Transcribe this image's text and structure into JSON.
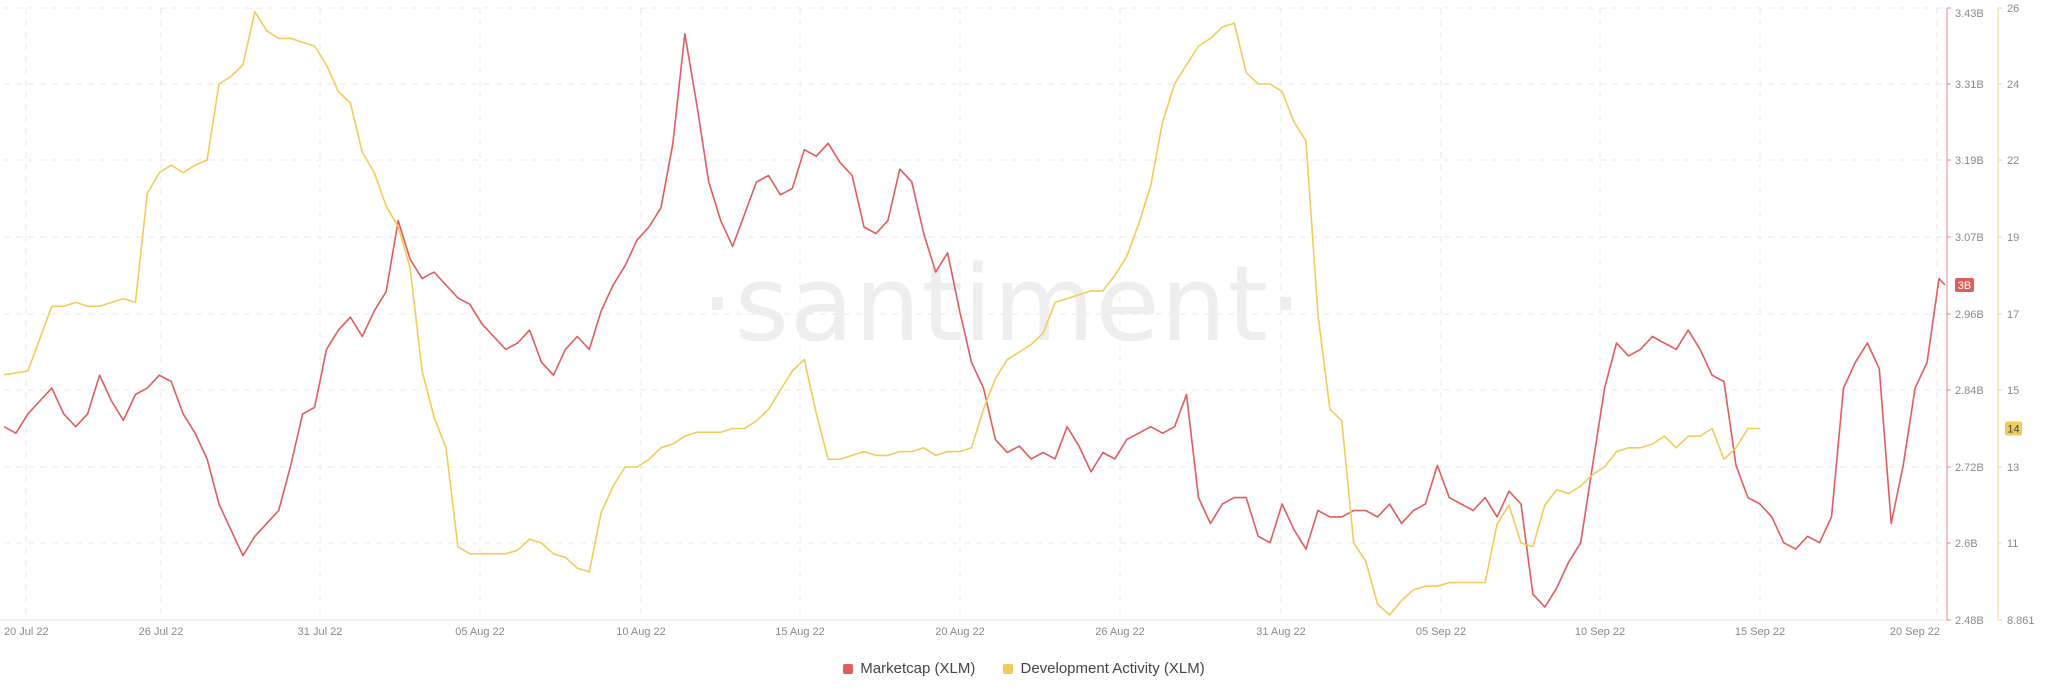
{
  "chart_data": {
    "type": "line",
    "watermark": "·santiment·",
    "x_ticks": [
      "20 Jul 22",
      "26 Jul 22",
      "31 Jul 22",
      "05 Aug 22",
      "10 Aug 22",
      "15 Aug 22",
      "20 Aug 22",
      "26 Aug 22",
      "31 Aug 22",
      "05 Sep 22",
      "10 Sep 22",
      "15 Sep 22",
      "20 Sep 22"
    ],
    "y_left": {
      "ticks": [
        "2.48B",
        "2.6B",
        "2.72B",
        "2.84B",
        "2.96B",
        "3.07B",
        "3.19B",
        "3.31B",
        "3.43B"
      ],
      "ylim": [
        2.48,
        3.43
      ],
      "color": "#e86b6b"
    },
    "y_right": {
      "ticks": [
        "8.861",
        "11",
        "13",
        "15",
        "17",
        "19",
        "22",
        "24",
        "26"
      ],
      "color": "#f2cc5b"
    },
    "series": [
      {
        "name": "Marketcap (XLM)",
        "color": "#e05d5d",
        "axis": "left",
        "current_badge": "3B",
        "points": [
          [
            0,
            2.78
          ],
          [
            2,
            2.77
          ],
          [
            4,
            2.8
          ],
          [
            6,
            2.82
          ],
          [
            8,
            2.84
          ],
          [
            10,
            2.8
          ],
          [
            12,
            2.78
          ],
          [
            14,
            2.8
          ],
          [
            16,
            2.86
          ],
          [
            18,
            2.82
          ],
          [
            20,
            2.79
          ],
          [
            22,
            2.83
          ],
          [
            24,
            2.84
          ],
          [
            26,
            2.86
          ],
          [
            28,
            2.85
          ],
          [
            30,
            2.8
          ],
          [
            32,
            2.77
          ],
          [
            34,
            2.73
          ],
          [
            36,
            2.66
          ],
          [
            38,
            2.62
          ],
          [
            40,
            2.58
          ],
          [
            42,
            2.61
          ],
          [
            44,
            2.63
          ],
          [
            46,
            2.65
          ],
          [
            48,
            2.72
          ],
          [
            50,
            2.8
          ],
          [
            52,
            2.81
          ],
          [
            54,
            2.9
          ],
          [
            56,
            2.93
          ],
          [
            58,
            2.95
          ],
          [
            60,
            2.92
          ],
          [
            62,
            2.96
          ],
          [
            64,
            2.99
          ],
          [
            66,
            3.1
          ],
          [
            68,
            3.04
          ],
          [
            70,
            3.01
          ],
          [
            72,
            3.02
          ],
          [
            74,
            3.0
          ],
          [
            76,
            2.98
          ],
          [
            78,
            2.97
          ],
          [
            80,
            2.94
          ],
          [
            82,
            2.92
          ],
          [
            84,
            2.9
          ],
          [
            86,
            2.91
          ],
          [
            88,
            2.93
          ],
          [
            90,
            2.88
          ],
          [
            92,
            2.86
          ],
          [
            94,
            2.9
          ],
          [
            96,
            2.92
          ],
          [
            98,
            2.9
          ],
          [
            100,
            2.96
          ],
          [
            102,
            3.0
          ],
          [
            104,
            3.03
          ],
          [
            106,
            3.07
          ],
          [
            108,
            3.09
          ],
          [
            110,
            3.12
          ],
          [
            112,
            3.22
          ],
          [
            114,
            3.39
          ],
          [
            116,
            3.28
          ],
          [
            118,
            3.16
          ],
          [
            120,
            3.1
          ],
          [
            122,
            3.06
          ],
          [
            124,
            3.11
          ],
          [
            126,
            3.16
          ],
          [
            128,
            3.17
          ],
          [
            130,
            3.14
          ],
          [
            132,
            3.15
          ],
          [
            134,
            3.21
          ],
          [
            136,
            3.2
          ],
          [
            138,
            3.22
          ],
          [
            140,
            3.19
          ],
          [
            142,
            3.17
          ],
          [
            144,
            3.09
          ],
          [
            146,
            3.08
          ],
          [
            148,
            3.1
          ],
          [
            150,
            3.18
          ],
          [
            152,
            3.16
          ],
          [
            154,
            3.08
          ],
          [
            156,
            3.02
          ],
          [
            158,
            3.05
          ],
          [
            160,
            2.96
          ],
          [
            162,
            2.88
          ],
          [
            164,
            2.84
          ],
          [
            166,
            2.76
          ],
          [
            168,
            2.74
          ],
          [
            170,
            2.75
          ],
          [
            172,
            2.73
          ],
          [
            174,
            2.74
          ],
          [
            176,
            2.73
          ],
          [
            178,
            2.78
          ],
          [
            180,
            2.75
          ],
          [
            182,
            2.71
          ],
          [
            184,
            2.74
          ],
          [
            186,
            2.73
          ],
          [
            188,
            2.76
          ],
          [
            190,
            2.77
          ],
          [
            192,
            2.78
          ],
          [
            194,
            2.77
          ],
          [
            196,
            2.78
          ],
          [
            198,
            2.83
          ],
          [
            200,
            2.67
          ],
          [
            202,
            2.63
          ],
          [
            204,
            2.66
          ],
          [
            206,
            2.67
          ],
          [
            208,
            2.67
          ],
          [
            210,
            2.61
          ],
          [
            212,
            2.6
          ],
          [
            214,
            2.66
          ],
          [
            216,
            2.62
          ],
          [
            218,
            2.59
          ],
          [
            220,
            2.65
          ],
          [
            222,
            2.64
          ],
          [
            224,
            2.64
          ],
          [
            226,
            2.65
          ],
          [
            228,
            2.65
          ],
          [
            230,
            2.64
          ],
          [
            232,
            2.66
          ],
          [
            234,
            2.63
          ],
          [
            236,
            2.65
          ],
          [
            238,
            2.66
          ],
          [
            240,
            2.72
          ],
          [
            242,
            2.67
          ],
          [
            244,
            2.66
          ],
          [
            246,
            2.65
          ],
          [
            248,
            2.67
          ],
          [
            250,
            2.64
          ],
          [
            252,
            2.68
          ],
          [
            254,
            2.66
          ],
          [
            256,
            2.52
          ],
          [
            258,
            2.5
          ],
          [
            260,
            2.53
          ],
          [
            262,
            2.57
          ],
          [
            264,
            2.6
          ],
          [
            266,
            2.72
          ],
          [
            268,
            2.84
          ],
          [
            270,
            2.91
          ],
          [
            272,
            2.89
          ],
          [
            274,
            2.9
          ],
          [
            276,
            2.92
          ],
          [
            278,
            2.91
          ],
          [
            280,
            2.9
          ],
          [
            282,
            2.93
          ],
          [
            284,
            2.9
          ],
          [
            286,
            2.86
          ],
          [
            288,
            2.85
          ],
          [
            290,
            2.72
          ],
          [
            292,
            2.67
          ],
          [
            294,
            2.66
          ],
          [
            296,
            2.64
          ],
          [
            298,
            2.6
          ],
          [
            300,
            2.59
          ],
          [
            302,
            2.61
          ],
          [
            304,
            2.6
          ],
          [
            306,
            2.64
          ],
          [
            308,
            2.84
          ],
          [
            310,
            2.88
          ],
          [
            312,
            2.91
          ],
          [
            314,
            2.87
          ],
          [
            316,
            2.63
          ],
          [
            318,
            2.72
          ],
          [
            320,
            2.84
          ],
          [
            322,
            2.88
          ],
          [
            324,
            3.01
          ],
          [
            325,
            3.0
          ]
        ]
      },
      {
        "name": "Development Activity (XLM)",
        "color": "#f2cc5b",
        "axis": "right",
        "current_badge": "14",
        "points": [
          [
            0,
            15.4
          ],
          [
            4,
            15.5
          ],
          [
            8,
            17.2
          ],
          [
            10,
            17.2
          ],
          [
            12,
            17.3
          ],
          [
            14,
            17.2
          ],
          [
            16,
            17.2
          ],
          [
            18,
            17.3
          ],
          [
            20,
            17.4
          ],
          [
            22,
            17.3
          ],
          [
            24,
            20.7
          ],
          [
            26,
            21.5
          ],
          [
            28,
            21.8
          ],
          [
            30,
            21.5
          ],
          [
            32,
            21.8
          ],
          [
            34,
            22.0
          ],
          [
            36,
            24.0
          ],
          [
            38,
            24.2
          ],
          [
            40,
            24.5
          ],
          [
            42,
            25.9
          ],
          [
            44,
            25.4
          ],
          [
            46,
            25.2
          ],
          [
            48,
            25.2
          ],
          [
            50,
            25.1
          ],
          [
            52,
            25.0
          ],
          [
            54,
            24.5
          ],
          [
            56,
            23.8
          ],
          [
            58,
            23.5
          ],
          [
            60,
            22.2
          ],
          [
            62,
            21.5
          ],
          [
            64,
            20.2
          ],
          [
            66,
            19.4
          ],
          [
            68,
            18.2
          ],
          [
            70,
            15.5
          ],
          [
            72,
            14.3
          ],
          [
            74,
            13.5
          ],
          [
            76,
            10.9
          ],
          [
            78,
            10.7
          ],
          [
            80,
            10.7
          ],
          [
            82,
            10.7
          ],
          [
            84,
            10.7
          ],
          [
            86,
            10.8
          ],
          [
            88,
            11.1
          ],
          [
            90,
            11.0
          ],
          [
            92,
            10.7
          ],
          [
            94,
            10.6
          ],
          [
            96,
            10.3
          ],
          [
            98,
            10.2
          ],
          [
            100,
            11.8
          ],
          [
            102,
            12.5
          ],
          [
            104,
            13.0
          ],
          [
            106,
            13.0
          ],
          [
            108,
            13.2
          ],
          [
            110,
            13.5
          ],
          [
            112,
            13.6
          ],
          [
            114,
            13.8
          ],
          [
            116,
            13.9
          ],
          [
            118,
            13.9
          ],
          [
            120,
            13.9
          ],
          [
            122,
            14.0
          ],
          [
            124,
            14.0
          ],
          [
            126,
            14.2
          ],
          [
            128,
            14.5
          ],
          [
            130,
            15.0
          ],
          [
            132,
            15.5
          ],
          [
            134,
            15.8
          ],
          [
            136,
            14.4
          ],
          [
            138,
            13.2
          ],
          [
            140,
            13.2
          ],
          [
            142,
            13.3
          ],
          [
            144,
            13.4
          ],
          [
            146,
            13.3
          ],
          [
            148,
            13.3
          ],
          [
            150,
            13.4
          ],
          [
            152,
            13.4
          ],
          [
            154,
            13.5
          ],
          [
            156,
            13.3
          ],
          [
            158,
            13.4
          ],
          [
            160,
            13.4
          ],
          [
            162,
            13.5
          ],
          [
            164,
            14.5
          ],
          [
            166,
            15.3
          ],
          [
            168,
            15.8
          ],
          [
            170,
            16.0
          ],
          [
            172,
            16.2
          ],
          [
            174,
            16.5
          ],
          [
            176,
            17.3
          ],
          [
            178,
            17.4
          ],
          [
            180,
            17.5
          ],
          [
            182,
            17.6
          ],
          [
            184,
            17.6
          ],
          [
            186,
            18.0
          ],
          [
            188,
            18.5
          ],
          [
            190,
            19.5
          ],
          [
            192,
            21.0
          ],
          [
            194,
            23.0
          ],
          [
            196,
            24.0
          ],
          [
            198,
            24.5
          ],
          [
            200,
            25.0
          ],
          [
            202,
            25.2
          ],
          [
            204,
            25.5
          ],
          [
            206,
            25.6
          ],
          [
            208,
            24.3
          ],
          [
            210,
            24.0
          ],
          [
            212,
            24.0
          ],
          [
            214,
            23.8
          ],
          [
            216,
            23.0
          ],
          [
            218,
            22.5
          ],
          [
            220,
            17.0
          ],
          [
            222,
            14.5
          ],
          [
            224,
            14.2
          ],
          [
            226,
            11.0
          ],
          [
            228,
            10.5
          ],
          [
            230,
            9.3
          ],
          [
            232,
            9.0
          ],
          [
            234,
            9.4
          ],
          [
            236,
            9.7
          ],
          [
            238,
            9.8
          ],
          [
            240,
            9.8
          ],
          [
            242,
            9.9
          ],
          [
            244,
            9.9
          ],
          [
            246,
            9.9
          ],
          [
            248,
            9.9
          ],
          [
            250,
            11.5
          ],
          [
            252,
            12.0
          ],
          [
            254,
            11.0
          ],
          [
            256,
            10.9
          ],
          [
            258,
            12.0
          ],
          [
            260,
            12.4
          ],
          [
            262,
            12.3
          ],
          [
            264,
            12.5
          ],
          [
            266,
            12.8
          ],
          [
            268,
            13.0
          ],
          [
            270,
            13.4
          ],
          [
            272,
            13.5
          ],
          [
            274,
            13.5
          ],
          [
            276,
            13.6
          ],
          [
            278,
            13.8
          ],
          [
            280,
            13.5
          ],
          [
            282,
            13.8
          ],
          [
            284,
            13.8
          ],
          [
            286,
            14.0
          ],
          [
            288,
            13.2
          ],
          [
            290,
            13.5
          ],
          [
            292,
            14.0
          ],
          [
            294,
            14.0
          ]
        ]
      }
    ]
  },
  "legend": {
    "marketcap_label": "Marketcap (XLM)",
    "devact_label": "Development Activity (XLM)"
  }
}
